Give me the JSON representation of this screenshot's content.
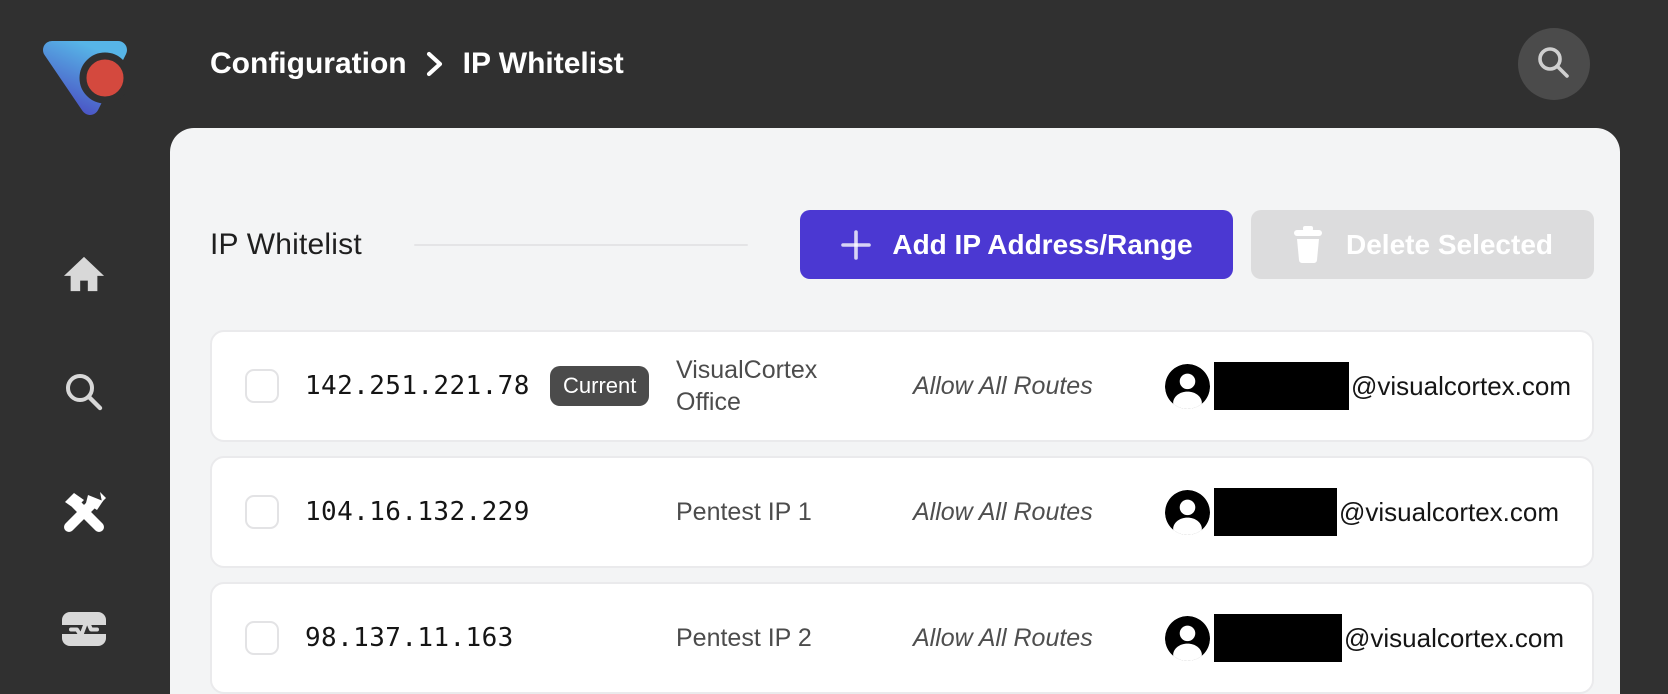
{
  "colors": {
    "background_dark": "#303030",
    "card_background": "#f3f4f5",
    "accent_purple": "#4b38d2",
    "disabled_button_gray": "#dcdcdd",
    "badge_gray": "#4b4b4b",
    "logo_blue_light": "#57b5e7",
    "logo_blue_deep": "#4b55c5",
    "logo_red": "#d4493e"
  },
  "breadcrumb": {
    "items": [
      {
        "label": "Configuration"
      },
      {
        "label": "IP Whitelist"
      }
    ],
    "separator_icon": "chevron-right-icon"
  },
  "topbar": {
    "search_button_icon": "search-icon"
  },
  "sidebar": {
    "items": [
      {
        "icon": "home-icon",
        "active": false
      },
      {
        "icon": "search-icon",
        "active": false
      },
      {
        "icon": "tools-icon",
        "active": true
      },
      {
        "icon": "activity-monitor-icon",
        "active": false
      }
    ]
  },
  "main": {
    "title": "IP Whitelist",
    "toolbar": {
      "add_label": "Add IP Address/Range",
      "add_icon": "plus-icon",
      "delete_label": "Delete Selected",
      "delete_icon": "trash-icon",
      "delete_disabled": true
    },
    "rows": [
      {
        "checked": false,
        "ip": "142.251.221.78",
        "badge": "Current",
        "name": "VisualCortex Office",
        "routes": "Allow All Routes",
        "user_icon": "person-avatar-icon",
        "email_user_redacted": true,
        "email_visible": "@visualcortex.com"
      },
      {
        "checked": false,
        "ip": "104.16.132.229",
        "badge": "",
        "name": "Pentest IP 1",
        "routes": "Allow All Routes",
        "user_icon": "person-avatar-icon",
        "email_user_redacted": true,
        "email_visible": "@visualcortex.com"
      },
      {
        "checked": false,
        "ip": "98.137.11.163",
        "badge": "",
        "name": "Pentest IP 2",
        "routes": "Allow All Routes",
        "user_icon": "person-avatar-icon",
        "email_user_redacted": true,
        "email_visible": "@visualcortex.com"
      }
    ]
  }
}
